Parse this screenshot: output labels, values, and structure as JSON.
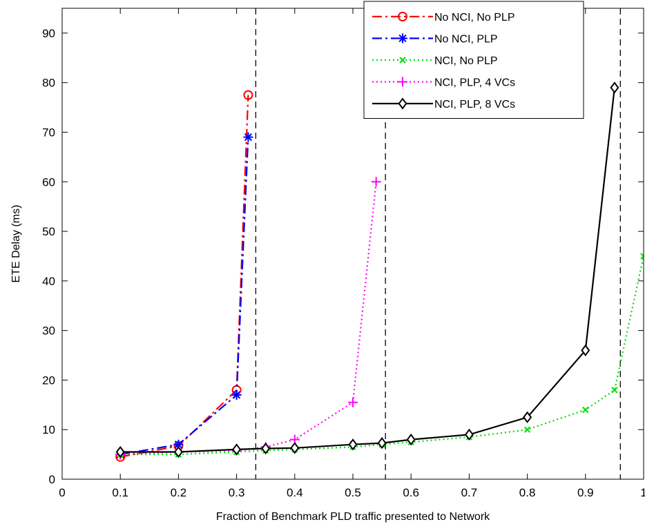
{
  "chart_data": {
    "type": "line",
    "title": "",
    "xlabel": "Fraction of Benchmark PLD traffic presented to Network",
    "ylabel": "ETE Delay (ms)",
    "xlim": [
      0,
      1
    ],
    "ylim": [
      0,
      95
    ],
    "xticks": [
      0,
      0.1,
      0.2,
      0.3,
      0.4,
      0.5,
      0.6,
      0.7,
      0.8,
      0.9,
      1
    ],
    "xtick_labels": [
      "0",
      "0.1",
      "0.2",
      "0.3",
      "0.4",
      "0.5",
      "0.6",
      "0.7",
      "0.8",
      "0.9",
      "1"
    ],
    "yticks": [
      0,
      10,
      20,
      30,
      40,
      50,
      60,
      70,
      80,
      90
    ],
    "ytick_labels": [
      "0",
      "10",
      "20",
      "30",
      "40",
      "50",
      "60",
      "70",
      "80",
      "90"
    ],
    "grid": false,
    "legend_position": "top-right",
    "vertical_lines": [
      0.333,
      0.556,
      0.96
    ],
    "series": [
      {
        "name": "No NCI, No PLP",
        "color": "#ff0000",
        "line_style": "dash-dot",
        "marker": "circle",
        "x": [
          0.1,
          0.2,
          0.3,
          0.32
        ],
        "y": [
          4.5,
          6.7,
          18,
          77.5
        ]
      },
      {
        "name": "No NCI, PLP",
        "color": "#0000ff",
        "line_style": "dash-dot",
        "marker": "star",
        "x": [
          0.1,
          0.2,
          0.3,
          0.32
        ],
        "y": [
          5,
          7,
          17,
          69
        ]
      },
      {
        "name": "NCI, No PLP",
        "color": "#00dd00",
        "line_style": "dotted",
        "marker": "x",
        "x": [
          0.1,
          0.2,
          0.3,
          0.35,
          0.4,
          0.5,
          0.55,
          0.6,
          0.7,
          0.8,
          0.9,
          0.95,
          1
        ],
        "y": [
          5,
          5,
          5.5,
          5.8,
          6,
          6.5,
          7,
          7.5,
          8.5,
          10,
          14,
          18,
          45
        ]
      },
      {
        "name": "NCI, PLP, 4 VCs",
        "color": "#ff00ff",
        "line_style": "dotted",
        "marker": "plus",
        "x": [
          0.1,
          0.2,
          0.3,
          0.35,
          0.4,
          0.5,
          0.54
        ],
        "y": [
          5,
          5.5,
          5.8,
          6.5,
          8,
          15.5,
          60
        ]
      },
      {
        "name": "NCI, PLP, 8 VCs",
        "color": "#000000",
        "line_style": "solid",
        "marker": "diamond",
        "x": [
          0.1,
          0.2,
          0.3,
          0.35,
          0.4,
          0.5,
          0.55,
          0.6,
          0.7,
          0.8,
          0.9,
          0.95
        ],
        "y": [
          5.5,
          5.5,
          6,
          6.2,
          6.3,
          7,
          7.3,
          8,
          9,
          12.5,
          26,
          79
        ]
      }
    ]
  }
}
